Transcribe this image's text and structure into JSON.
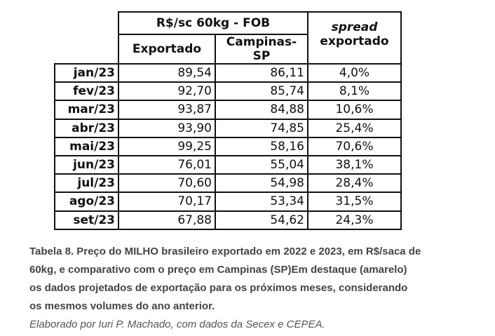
{
  "table": {
    "header_group": "R$/sc 60kg - FOB",
    "col_exportado": "Exportado",
    "col_campinas": "Campinas-SP",
    "col_spread_line1": "spread",
    "col_spread_line2": "exportado",
    "rows": [
      {
        "month": "jan/23",
        "exportado": "89,54",
        "campinas": "86,11",
        "spread": "4,0%"
      },
      {
        "month": "fev/23",
        "exportado": "92,70",
        "campinas": "85,74",
        "spread": "8,1%"
      },
      {
        "month": "mar/23",
        "exportado": "93,87",
        "campinas": "84,88",
        "spread": "10,6%"
      },
      {
        "month": "abr/23",
        "exportado": "93,90",
        "campinas": "74,85",
        "spread": "25,4%"
      },
      {
        "month": "mai/23",
        "exportado": "99,25",
        "campinas": "58,16",
        "spread": "70,6%"
      },
      {
        "month": "jun/23",
        "exportado": "76,01",
        "campinas": "55,04",
        "spread": "38,1%"
      },
      {
        "month": "jul/23",
        "exportado": "70,60",
        "campinas": "54,98",
        "spread": "28,4%"
      },
      {
        "month": "ago/23",
        "exportado": "70,17",
        "campinas": "53,34",
        "spread": "31,5%"
      },
      {
        "month": "set/23",
        "exportado": "67,88",
        "campinas": "54,62",
        "spread": "24,3%"
      }
    ]
  },
  "caption": {
    "title": "Tabela 8. Preço do MILHO brasileiro exportado em 2022 e 2023, em R$/saca de 60kg, e comparativo com o preço em Campinas (SP)Em destaque (amarelo) os dados projetados de exportação para os próximos meses, considerando os mesmos volumes do ano anterior.",
    "source": "Elaborado por Iuri P. Machado, com dados da Secex e CEPEA."
  }
}
